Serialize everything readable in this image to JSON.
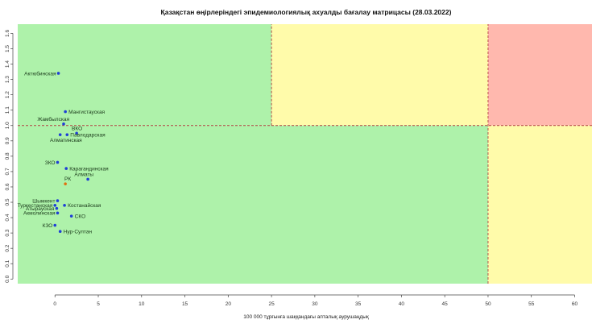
{
  "chart_data": {
    "type": "scatter",
    "title": "Қазақстан өңірлеріндегі эпидемиологиялық ахуалды бағалау матрицасы  (28.03.2022)",
    "xlabel": "100 000 тұрғынға шаққандағы апталық аурушаңдық",
    "ylabel": "",
    "xlim": [
      -4.3,
      62
    ],
    "ylim": [
      -0.03,
      1.66
    ],
    "x_ticks": [
      0,
      5,
      10,
      15,
      20,
      25,
      30,
      35,
      40,
      45,
      50,
      55,
      60
    ],
    "y_ticks": [
      0.0,
      0.1,
      0.2,
      0.3,
      0.4,
      0.5,
      0.6,
      0.7,
      0.8,
      0.9,
      1.0,
      1.1,
      1.2,
      1.3,
      1.4,
      1.5,
      1.6
    ],
    "grid": false,
    "zones": [
      {
        "name": "green",
        "color": "#aef2aa",
        "x": [
          -4.3,
          25
        ],
        "y": [
          1.0,
          1.66
        ]
      },
      {
        "name": "yellow",
        "color": "#fffbaa",
        "x": [
          25,
          50
        ],
        "y": [
          1.0,
          1.66
        ]
      },
      {
        "name": "red",
        "color": "#ffb8ae",
        "x": [
          50,
          62
        ],
        "y": [
          1.0,
          1.66
        ]
      },
      {
        "name": "green",
        "color": "#aef2aa",
        "x": [
          -4.3,
          50
        ],
        "y": [
          -0.03,
          1.0
        ]
      },
      {
        "name": "yellow",
        "color": "#fffbaa",
        "x": [
          50,
          62
        ],
        "y": [
          -0.03,
          1.0
        ]
      }
    ],
    "threshold_lines": [
      {
        "axis": "y",
        "value": 1.0,
        "from": -4.3,
        "to": 62,
        "color": "#b04040"
      },
      {
        "axis": "x",
        "value": 25,
        "from": 1.0,
        "to": 1.66,
        "color": "#b04040"
      },
      {
        "axis": "x",
        "value": 50,
        "from": -0.03,
        "to": 1.66,
        "color": "#b04040"
      }
    ],
    "points": [
      {
        "label": "Актюбинская",
        "x": 0.4,
        "y": 1.34,
        "color": "#1f3fd6",
        "label_side": "left"
      },
      {
        "label": "Мангистауская",
        "x": 1.2,
        "y": 1.09,
        "color": "#1f3fd6",
        "label_side": "right"
      },
      {
        "label": "Жамбылская",
        "x": 1.0,
        "y": 1.01,
        "color": "#1f3fd6",
        "label_side": "above-left"
      },
      {
        "label": "ВКО",
        "x": 2.5,
        "y": 0.95,
        "color": "#1f3fd6",
        "label_side": "above-left"
      },
      {
        "label": "Павлодарская",
        "x": 1.4,
        "y": 0.94,
        "color": "#1f3fd6",
        "label_side": "right"
      },
      {
        "label": "Алматинская",
        "x": 0.6,
        "y": 0.94,
        "color": "#1f3fd6",
        "label_side": "below-left"
      },
      {
        "label": "ЗКО",
        "x": 0.3,
        "y": 0.76,
        "color": "#1f3fd6",
        "label_side": "left"
      },
      {
        "label": "Карагандинская",
        "x": 1.3,
        "y": 0.72,
        "color": "#1f3fd6",
        "label_side": "right"
      },
      {
        "label": "Алматы",
        "x": 3.8,
        "y": 0.65,
        "color": "#1f3fd6",
        "label_side": "above-left"
      },
      {
        "label": "РК",
        "x": 1.2,
        "y": 0.62,
        "color": "#e07010",
        "label_side": "above-left"
      },
      {
        "label": "Шымкент",
        "x": 0.3,
        "y": 0.51,
        "color": "#1f3fd6",
        "label_side": "left"
      },
      {
        "label": "Туркестанская",
        "x": 0.0,
        "y": 0.48,
        "color": "#1f3fd6",
        "label_side": "left"
      },
      {
        "label": "Костанайская",
        "x": 1.1,
        "y": 0.48,
        "color": "#1f3fd6",
        "label_side": "right"
      },
      {
        "label": "Атырауская",
        "x": 0.2,
        "y": 0.46,
        "color": "#1f3fd6",
        "label_side": "left"
      },
      {
        "label": "Акмолинская",
        "x": 0.3,
        "y": 0.43,
        "color": "#1f3fd6",
        "label_side": "left"
      },
      {
        "label": "СКО",
        "x": 1.9,
        "y": 0.41,
        "color": "#1f3fd6",
        "label_side": "right"
      },
      {
        "label": "КЗО",
        "x": 0.0,
        "y": 0.35,
        "color": "#1f3fd6",
        "label_side": "left"
      },
      {
        "label": "Нур-Султан",
        "x": 0.6,
        "y": 0.31,
        "color": "#1f3fd6",
        "label_side": "right"
      }
    ]
  }
}
